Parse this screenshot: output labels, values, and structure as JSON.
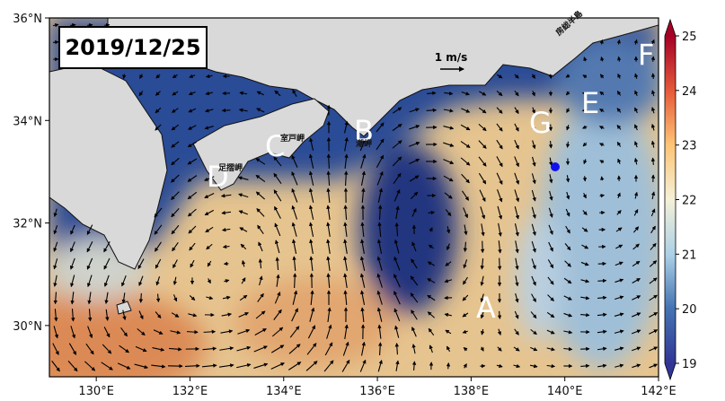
{
  "map": {
    "title": "2019/12/25",
    "xlim": [
      129,
      142
    ],
    "ylim": [
      29,
      36
    ],
    "xticks": [
      {
        "value": 130,
        "label": "130°E"
      },
      {
        "value": 132,
        "label": "132°E"
      },
      {
        "value": 134,
        "label": "134°E"
      },
      {
        "value": 136,
        "label": "136°E"
      },
      {
        "value": 138,
        "label": "138°E"
      },
      {
        "value": 140,
        "label": "140°E"
      },
      {
        "value": 142,
        "label": "142°E"
      }
    ],
    "yticks": [
      {
        "value": 30,
        "label": "30°N"
      },
      {
        "value": 32,
        "label": "32°N"
      },
      {
        "value": 34,
        "label": "34°N"
      },
      {
        "value": 36,
        "label": "36°N"
      }
    ],
    "colorbar": {
      "lim": [
        19,
        25
      ],
      "ticks": [
        19,
        20,
        21,
        22,
        23,
        24,
        25
      ]
    },
    "scale_label": "1 m/s",
    "points": [
      "A",
      "B",
      "C",
      "D",
      "E",
      "F",
      "G"
    ],
    "places": [
      "房総半島",
      "室戸岬",
      "潮岬",
      "足摺岬"
    ]
  }
}
